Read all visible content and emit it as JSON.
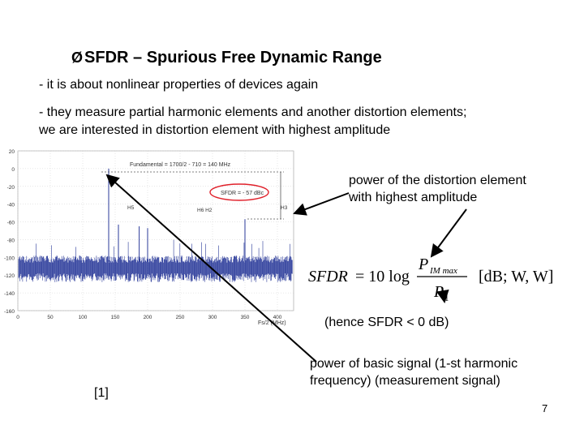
{
  "slide": {
    "title_bullet": "Ø",
    "title": "SFDR – Spurious Free Dynamic Range",
    "line1": "- it is about nonlinear properties of devices again",
    "line2": "- they measure partial harmonic elements and another distortion elements;",
    "line3": "we are interested in distortion element with highest amplitude",
    "callout_top_1": "power of the distortion element",
    "callout_top_2": "with highest amplitude",
    "hence": "(hence SFDR < 0 dB)",
    "callout_bottom_1": "power of basic signal (1-st harmonic",
    "callout_bottom_2": "frequency) (measurement signal)",
    "reference": "[1]",
    "page_number": "7"
  },
  "formula": {
    "lhs": "SFDR",
    "eq": "= 10 log",
    "numerator": "P",
    "numerator_sub": "IM max",
    "denominator": "P",
    "denominator_sub": "1",
    "units": "[dB; W, W]"
  },
  "plot": {
    "fundamental_label": "Fundamental = 1700/2 - 710 = 140 MHz",
    "sfdr_label": "SFDR = - 57 dBc",
    "h5": "H5",
    "h6h2": "H6 H2",
    "h3": "H3",
    "x_title": "Fs/2 (MHz)",
    "y_ticks": [
      "20",
      "0",
      "-20",
      "-40",
      "-60",
      "-80",
      "-100",
      "-120",
      "-140",
      "-160"
    ],
    "x_ticks": [
      "0",
      "50",
      "100",
      "150",
      "200",
      "250",
      "300",
      "350",
      "400"
    ],
    "accent_red": "#e0202a",
    "noise_color": "#2a3a9a"
  },
  "chart_data": {
    "type": "line",
    "xlabel": "Fs/2 (MHz)",
    "ylabel": "",
    "xlim": [
      0,
      425
    ],
    "ylim": [
      -160,
      20
    ],
    "series": [
      {
        "x": [
          140,
          155,
          187,
          200,
          350
        ],
        "y": [
          0,
          -63,
          -65,
          -67,
          -57
        ]
      }
    ]
  }
}
